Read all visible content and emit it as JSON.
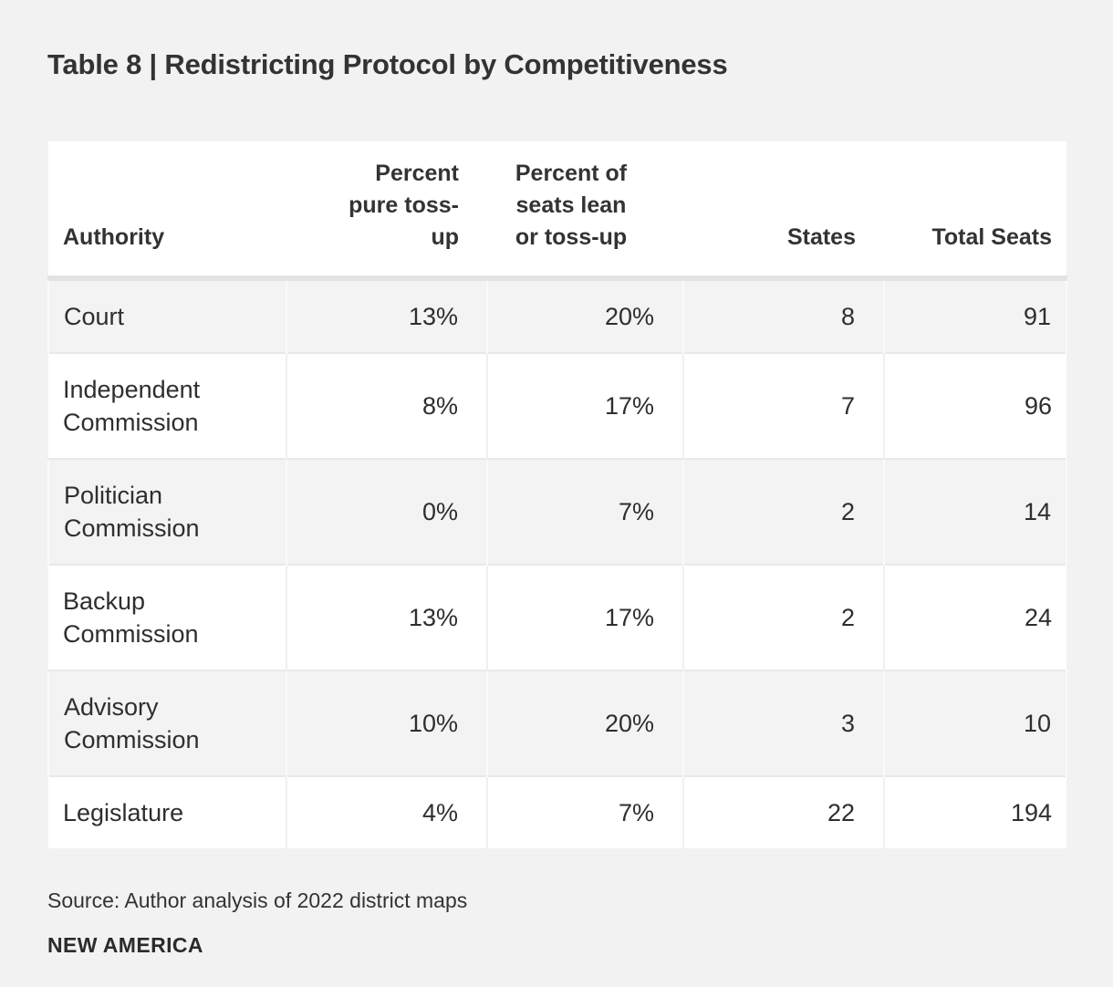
{
  "page": {
    "title": "Table 8 | Redistricting Protocol by Competitiveness",
    "source": "Source: Author analysis of 2022 district maps",
    "brand": "NEW AMERICA"
  },
  "colors": {
    "page_bg": "#f2f2f2",
    "header_bg": "#ffffff",
    "stripe_row_bg": "#f3f3f3",
    "plain_row_bg": "#ffffff",
    "header_rule": "#e3e3e3",
    "row_rule": "#e9e9e9",
    "text": "#2e2e2e"
  },
  "table": {
    "headers": [
      {
        "label": "Authority",
        "align": "left"
      },
      {
        "label": "Percent pure toss-up",
        "align": "right",
        "lines": [
          "Percent",
          "pure toss-",
          "up"
        ]
      },
      {
        "label": "Percent of seats lean or toss-up",
        "align": "center",
        "lines": [
          "Percent of",
          "seats lean",
          "or toss-up"
        ]
      },
      {
        "label": "States",
        "align": "right"
      },
      {
        "label": "Total Seats",
        "align": "right"
      }
    ],
    "rows": [
      {
        "cells": [
          "Court",
          "13%",
          "20%",
          "8",
          "91"
        ]
      },
      {
        "cells": [
          "Independent Commission",
          "8%",
          "17%",
          "7",
          "96"
        ]
      },
      {
        "cells": [
          "Politician Commission",
          "0%",
          "7%",
          "2",
          "14"
        ]
      },
      {
        "cells": [
          "Backup Commission",
          "13%",
          "17%",
          "2",
          "24"
        ]
      },
      {
        "cells": [
          "Advisory Commission",
          "10%",
          "20%",
          "3",
          "10"
        ]
      },
      {
        "cells": [
          "Legislature",
          "4%",
          "7%",
          "22",
          "194"
        ]
      }
    ]
  },
  "chart_data": {
    "type": "table",
    "title": "Table 8 | Redistricting Protocol by Competitiveness",
    "columns": [
      "Authority",
      "Percent pure toss-up",
      "Percent of seats lean or toss-up",
      "States",
      "Total Seats"
    ],
    "rows": [
      [
        "Court",
        "13%",
        "20%",
        8,
        91
      ],
      [
        "Independent Commission",
        "8%",
        "17%",
        7,
        96
      ],
      [
        "Politician Commission",
        "0%",
        "7%",
        2,
        14
      ],
      [
        "Backup Commission",
        "13%",
        "17%",
        2,
        24
      ],
      [
        "Advisory Commission",
        "10%",
        "20%",
        3,
        10
      ],
      [
        "Legislature",
        "4%",
        "7%",
        22,
        194
      ]
    ],
    "source": "Source: Author analysis of 2022 district maps",
    "brand": "NEW AMERICA",
    "layout": {
      "zebra_striping": true,
      "first_row_shaded": true,
      "numeric_alignment": "right"
    }
  }
}
